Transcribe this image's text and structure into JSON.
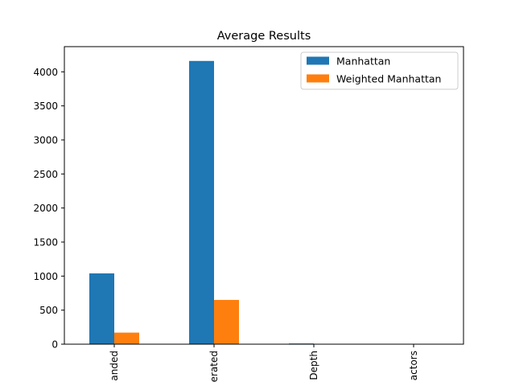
{
  "chart_data": {
    "type": "bar",
    "title": "Average Results",
    "xlabel": "",
    "ylabel": "",
    "categories": [
      "anded",
      "erated",
      "Depth",
      "actors"
    ],
    "series": [
      {
        "name": "Manhattan",
        "color": "#1f77b4",
        "values": [
          1040,
          4160,
          10,
          2
        ]
      },
      {
        "name": "Weighted Manhattan",
        "color": "#ff7f0e",
        "values": [
          170,
          650,
          5,
          1
        ]
      }
    ],
    "ylim": [
      0,
      4370
    ],
    "yticks": [
      0,
      500,
      1000,
      1500,
      2000,
      2500,
      3000,
      3500,
      4000
    ],
    "grid": false,
    "legend_position": "top-right"
  }
}
